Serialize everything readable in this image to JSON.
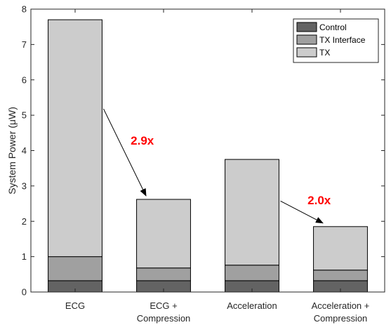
{
  "chart_data": {
    "type": "bar",
    "stacked": true,
    "categories": [
      [
        "ECG"
      ],
      [
        "ECG +",
        "Compression"
      ],
      [
        "Acceleration"
      ],
      [
        "Acceleration +",
        "Compression"
      ]
    ],
    "series": [
      {
        "name": "Control",
        "color": "#636363",
        "values": [
          0.32,
          0.32,
          0.32,
          0.32
        ]
      },
      {
        "name": "TX Interface",
        "color": "#a0a0a0",
        "values": [
          0.68,
          0.36,
          0.44,
          0.3
        ]
      },
      {
        "name": "TX",
        "color": "#cccccc",
        "values": [
          6.7,
          1.94,
          2.99,
          1.23
        ]
      }
    ],
    "ylabel": "System Power (μW)",
    "ylim": [
      0,
      8
    ],
    "yticks": [
      "0",
      "1",
      "2",
      "3",
      "4",
      "5",
      "6",
      "7",
      "8"
    ],
    "legend_position": "top-right",
    "annotations": [
      {
        "text": "2.9x",
        "color": "#ff0000",
        "from_category": 0,
        "to_category": 1
      },
      {
        "text": "2.0x",
        "color": "#ff0000",
        "from_category": 2,
        "to_category": 3
      }
    ]
  }
}
